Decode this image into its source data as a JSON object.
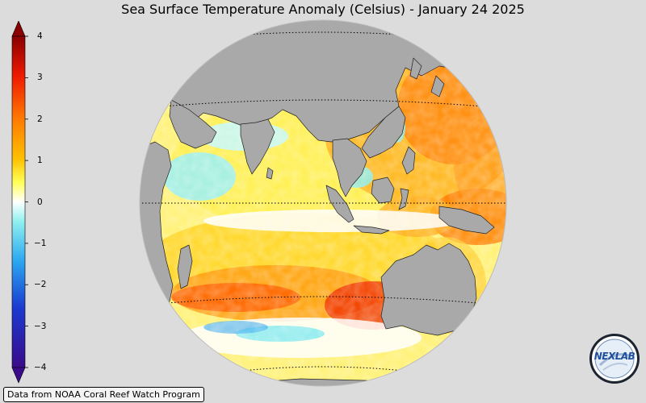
{
  "map": {
    "title": "Sea Surface Temperature Anomaly (Celsius) - January 24 2025",
    "projection": "orthographic",
    "center": "Indian Ocean",
    "colorbar": {
      "ticks": [
        "4",
        "3",
        "2",
        "1",
        "0",
        "−1",
        "−2",
        "−3",
        "−4"
      ],
      "range": [
        -4,
        4
      ],
      "colors": [
        "#3a0a8a",
        "#1a3ad0",
        "#2aa6f0",
        "#8ff0f0",
        "#ffffff",
        "#ffff55",
        "#ffc000",
        "#ff7a00",
        "#ee1a00",
        "#8a0000"
      ]
    },
    "land_color": "#a9a9a9",
    "credit": "Data from NOAA Coral Reef Watch Program",
    "logo": {
      "text": "NEXLAB",
      "icon": "nexlab-logo-icon"
    }
  }
}
